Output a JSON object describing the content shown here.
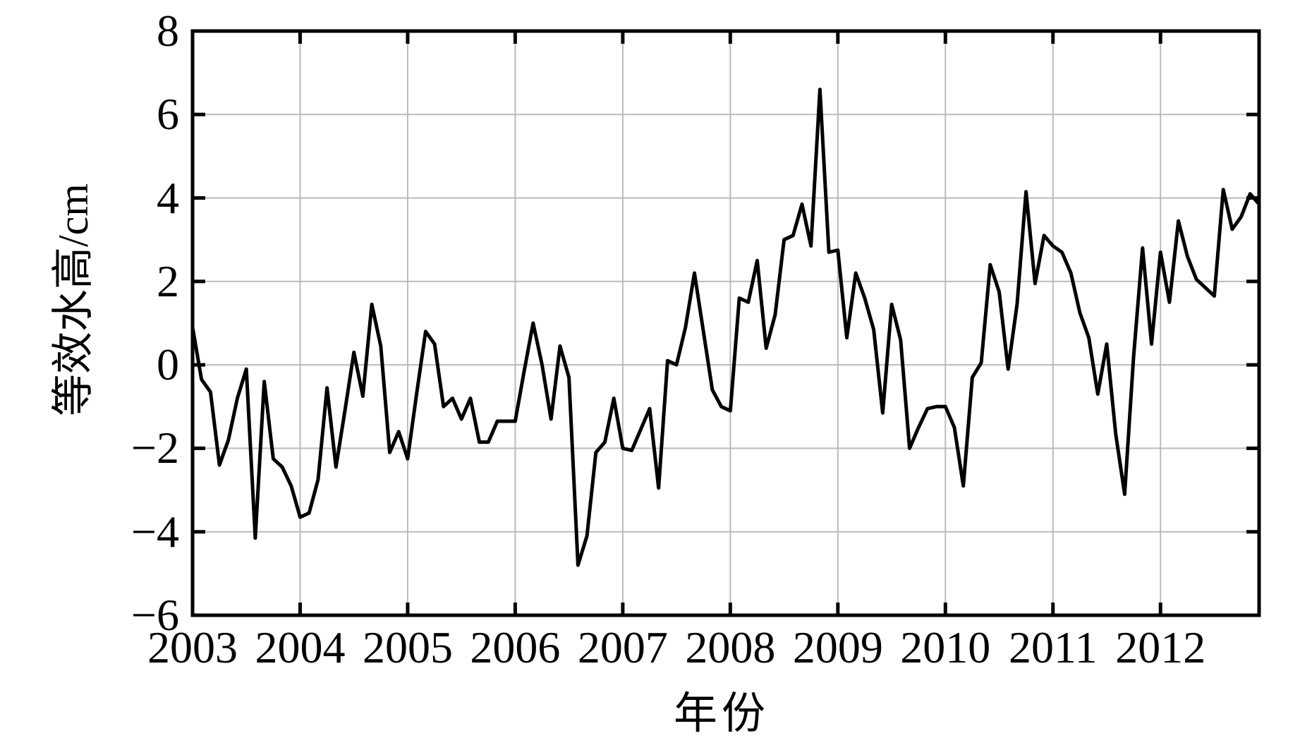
{
  "chart_data": {
    "type": "line",
    "title": "",
    "xlabel": "年份",
    "ylabel": "等效水高/cm",
    "x_tick_labels": [
      "2003",
      "2004",
      "2005",
      "2006",
      "2007",
      "2008",
      "2009",
      "2010",
      "2011",
      "2012"
    ],
    "y_ticks": [
      8,
      6,
      4,
      2,
      0,
      -2,
      -4,
      -6
    ],
    "y_tick_labels": [
      "8",
      "6",
      "4",
      "2",
      "0",
      "−2",
      "−4",
      "−6"
    ],
    "ylim": [
      -6,
      8
    ],
    "x_range": {
      "start": "2003-01",
      "end": "2012-12",
      "step": "monthly"
    },
    "grid": true,
    "legend": "none",
    "series": [
      {
        "name": "等效水高/cm",
        "color": "#000000",
        "values": [
          0.9,
          -0.35,
          -0.65,
          -2.4,
          -1.8,
          -0.8,
          -0.1,
          -4.15,
          -0.4,
          -2.25,
          -2.45,
          -2.9,
          -3.65,
          -3.55,
          -2.75,
          -0.55,
          -2.45,
          -1.1,
          0.3,
          -0.75,
          1.45,
          0.45,
          -2.1,
          -1.6,
          -2.25,
          -0.7,
          0.8,
          0.5,
          -1.0,
          -0.8,
          -1.3,
          -0.8,
          -1.85,
          -1.85,
          -1.35,
          -1.35,
          -1.35,
          -0.15,
          1.0,
          0.0,
          -1.3,
          0.45,
          -0.3,
          -4.8,
          -4.1,
          -2.1,
          -1.85,
          -0.8,
          -2.0,
          -2.05,
          -1.55,
          -1.05,
          -2.95,
          0.1,
          0.0,
          0.9,
          2.2,
          0.8,
          -0.6,
          -1.0,
          -1.1,
          1.6,
          1.5,
          2.5,
          0.4,
          1.2,
          3.0,
          3.1,
          3.85,
          2.85,
          6.6,
          2.7,
          2.75,
          0.65,
          2.2,
          1.6,
          0.85,
          -1.15,
          1.45,
          0.6,
          -2.0,
          -1.5,
          -1.05,
          -1.0,
          -1.0,
          -1.5,
          -2.9,
          -0.3,
          0.05,
          2.4,
          1.75,
          -0.1,
          1.45,
          4.15,
          1.95,
          3.1,
          2.85,
          2.7,
          2.2,
          1.25,
          0.65,
          -0.7,
          0.5,
          -1.65,
          -3.1,
          0.2,
          2.8,
          0.5,
          2.7,
          1.5,
          3.45,
          2.6,
          2.05,
          1.85,
          1.65,
          4.2,
          3.25,
          3.55,
          4.1,
          3.85
        ]
      }
    ]
  },
  "style": {
    "background": "#ffffff",
    "line_color": "#000000",
    "grid_color": "#b4b4b4",
    "axis_color": "#000000",
    "label_color": "#000000"
  }
}
